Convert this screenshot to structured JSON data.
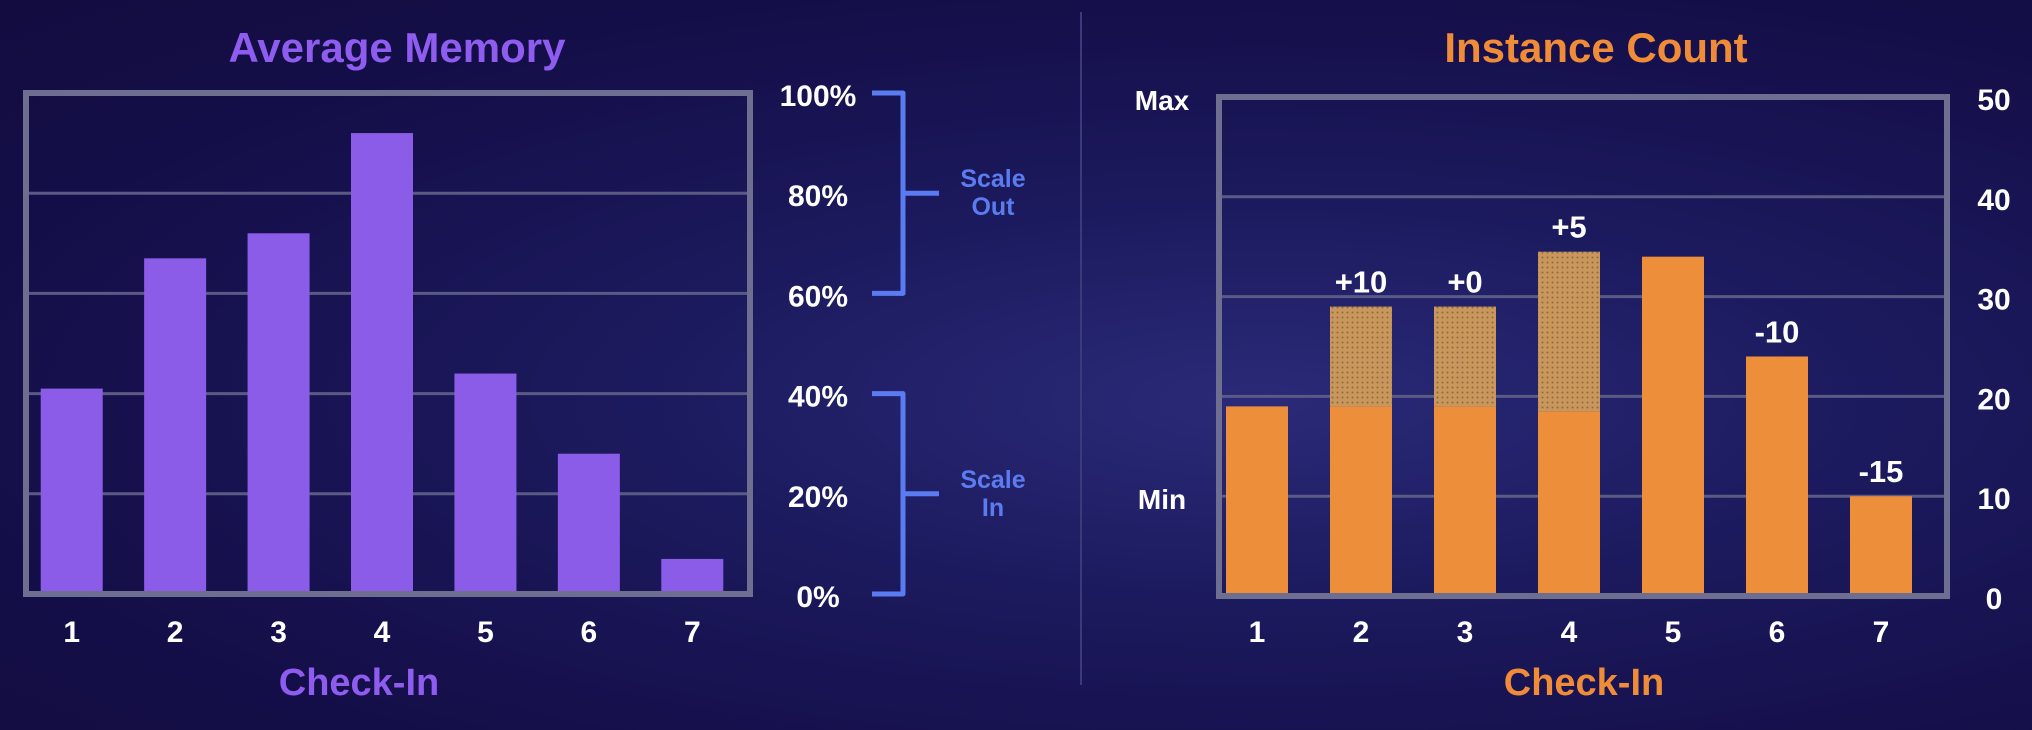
{
  "chart_data": [
    {
      "type": "bar",
      "title": "Average Memory",
      "xlabel": "Check-In",
      "categories": [
        "1",
        "2",
        "3",
        "4",
        "5",
        "6",
        "7"
      ],
      "values": [
        41,
        67,
        72,
        92,
        44,
        28,
        7
      ],
      "ylim": [
        0,
        100
      ],
      "y_tick_labels": [
        "0%",
        "20%",
        "40%",
        "60%",
        "80%",
        "100%"
      ],
      "y_axis_side": "right",
      "grid": true,
      "annotations": [
        {
          "text_lines": [
            "Scale",
            "Out"
          ],
          "range": [
            60,
            100
          ]
        },
        {
          "text_lines": [
            "Scale",
            "In"
          ],
          "range": [
            0,
            40
          ]
        }
      ],
      "colors": {
        "title": "#8f5cf0",
        "bar": "#8b5ce8",
        "xlabel": "#8f5cf0",
        "annotation": "#5b7cf0",
        "frame": "#6e6e90",
        "grid": "#5a5a84",
        "tick": "#ffffff"
      }
    },
    {
      "type": "bar",
      "title": "Instance Count",
      "xlabel": "Check-In",
      "categories": [
        "1",
        "2",
        "3",
        "4",
        "5",
        "6",
        "7"
      ],
      "series": [
        {
          "values": [
            19,
            19,
            19,
            18.5,
            34,
            24,
            10
          ]
        },
        {
          "values": [
            0,
            10,
            10,
            16,
            0,
            0,
            0
          ]
        }
      ],
      "totals": [
        19,
        29,
        29,
        34.5,
        34,
        24,
        10
      ],
      "bar_labels": [
        "",
        "+10",
        "+0",
        "+5",
        "",
        "-10",
        "-15"
      ],
      "ylim": [
        0,
        50
      ],
      "y_tick_labels": [
        "0",
        "10",
        "20",
        "30",
        "40",
        "50"
      ],
      "y_axis_side": "right",
      "left_labels": [
        {
          "text": "Max",
          "value": 50
        },
        {
          "text": "Min",
          "value": 10
        }
      ],
      "grid": true,
      "colors": {
        "title": "#f08c38",
        "bar": "#ec8e3a",
        "added": "#c9975c",
        "xlabel": "#f08c38",
        "frame": "#6e6e90",
        "grid": "#5a5a84",
        "tick": "#ffffff"
      }
    }
  ]
}
